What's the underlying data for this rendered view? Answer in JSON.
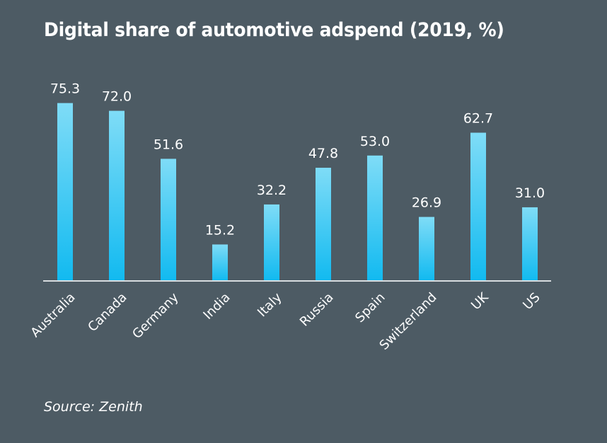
{
  "chart_data": {
    "type": "bar",
    "title": "Digital share of automotive adspend (2019, %)",
    "xlabel": "",
    "ylabel": "",
    "categories": [
      "Australia",
      "Canada",
      "Germany",
      "India",
      "Italy",
      "Russia",
      "Spain",
      "Switzerland",
      "UK",
      "US"
    ],
    "values": [
      75.3,
      72.0,
      51.6,
      15.2,
      32.2,
      47.8,
      53.0,
      26.9,
      62.7,
      31.0
    ],
    "value_labels": [
      "75.3",
      "72.0",
      "51.6",
      "15.2",
      "32.2",
      "47.8",
      "53.0",
      "26.9",
      "62.7",
      "31.0"
    ],
    "ylim": [
      0,
      80
    ],
    "grid": false,
    "legend": "none",
    "source": "Source: Zenith",
    "colors": {
      "background": "#4d5b64",
      "bar_top": "#7fdcf7",
      "bar_bottom": "#12baf0",
      "axis": "#d8dde0",
      "text": "#ffffff"
    }
  }
}
